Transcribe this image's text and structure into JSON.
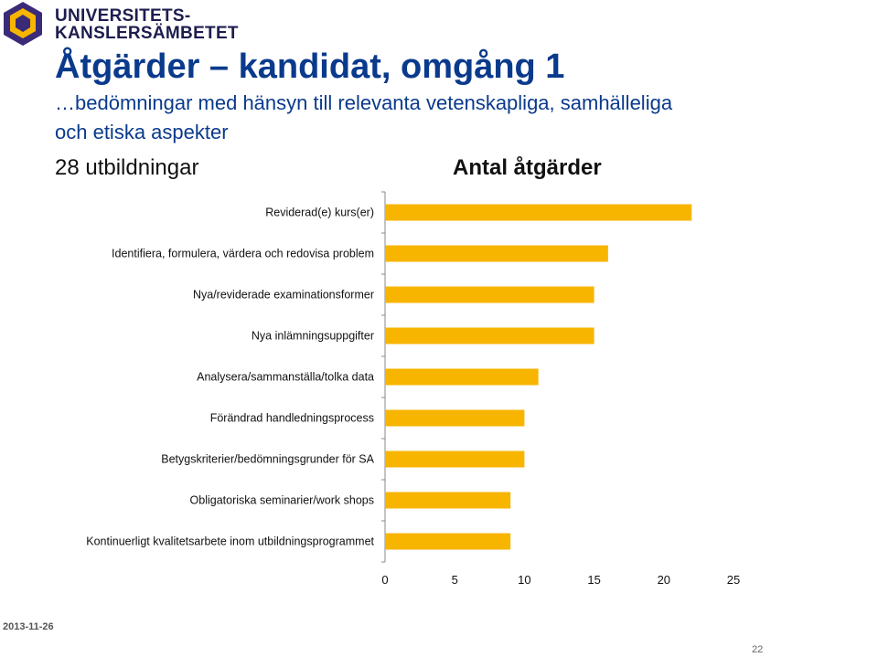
{
  "header": {
    "org_line1": "UNIVERSITETS-",
    "org_line2": "KANSLERSÄMBETET"
  },
  "slide": {
    "title": "Åtgärder – kandidat, omgång 1",
    "subtitle_line1": "…bedömningar med hänsyn till relevanta vetenskapliga, samhälleliga",
    "subtitle_line2": "och etiska aspekter",
    "count_label": "28 utbildningar"
  },
  "footer": {
    "date": "2013-11-26",
    "page_number": "22"
  },
  "colors": {
    "bar": "#F7B500",
    "title": "#0a3a8c",
    "logo_purple": "#3b2a78",
    "logo_yellow": "#F7B500"
  },
  "chart_data": {
    "type": "bar",
    "orientation": "horizontal",
    "title": "Antal åtgärder",
    "categories": [
      "Reviderad(e) kurs(er)",
      "Identifiera, formulera, värdera och redovisa problem",
      "Nya/reviderade examinationsformer",
      "Nya inlämningsuppgifter",
      "Analysera/sammanställa/tolka data",
      "Förändrad handledningsprocess",
      "Betygskriterier/bedömningsgrunder för SA",
      "Obligatoriska seminarier/work shops",
      "Kontinuerligt kvalitetsarbete inom utbildningsprogrammet"
    ],
    "values": [
      22,
      16,
      15,
      15,
      11,
      10,
      10,
      9,
      9
    ],
    "xlim": [
      0,
      25
    ],
    "xticks": [
      "0",
      "5",
      "10",
      "15",
      "20",
      "25"
    ],
    "grid": false
  }
}
